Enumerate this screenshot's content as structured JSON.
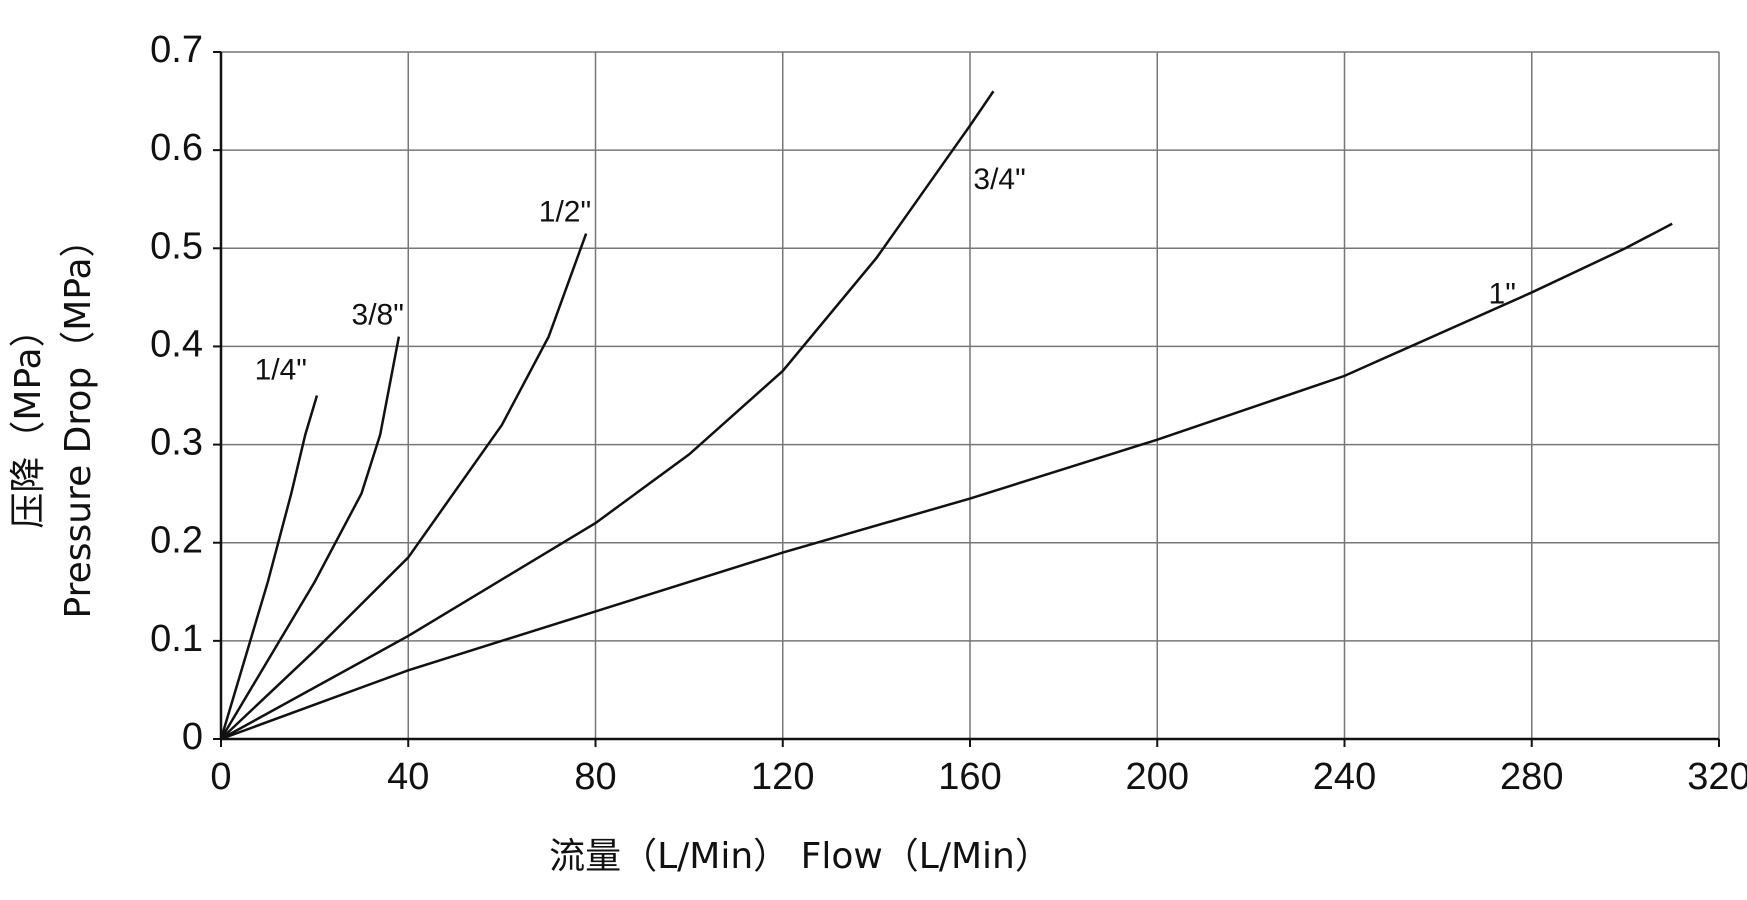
{
  "chart_data": {
    "type": "line",
    "y_label_lines": [
      "压降（MPa）",
      "Pressure Drop（MPa）"
    ],
    "x_label": "流量（L/Min）  Flow（L/Min）",
    "xlim": [
      0,
      320
    ],
    "xticks": [
      0,
      40,
      80,
      120,
      160,
      200,
      240,
      280,
      320
    ],
    "ylim": [
      0,
      0.7
    ],
    "yticks": [
      0,
      0.1,
      0.2,
      0.3,
      0.4,
      0.5,
      0.6,
      0.7
    ],
    "grid": true,
    "series": [
      {
        "name": "1/4\"",
        "color": "#111111",
        "x": [
          0,
          5,
          10,
          15,
          18,
          20.5
        ],
        "values": [
          0,
          0.08,
          0.16,
          0.25,
          0.31,
          0.35
        ]
      },
      {
        "name": "3/8\"",
        "color": "#111111",
        "x": [
          0,
          10,
          20,
          30,
          34,
          38
        ],
        "values": [
          0,
          0.08,
          0.16,
          0.25,
          0.31,
          0.41
        ]
      },
      {
        "name": "1/2\"",
        "color": "#111111",
        "x": [
          0,
          20,
          40,
          60,
          70,
          78
        ],
        "values": [
          0,
          0.09,
          0.185,
          0.32,
          0.41,
          0.515
        ]
      },
      {
        "name": "3/4\"",
        "color": "#111111",
        "x": [
          0,
          40,
          80,
          100,
          120,
          140,
          160,
          165
        ],
        "values": [
          0,
          0.105,
          0.22,
          0.29,
          0.375,
          0.49,
          0.625,
          0.66
        ]
      },
      {
        "name": "1\"",
        "color": "#111111",
        "x": [
          0,
          40,
          80,
          120,
          160,
          200,
          240,
          280,
          300,
          310
        ],
        "values": [
          0,
          0.07,
          0.13,
          0.19,
          0.245,
          0.305,
          0.37,
          0.455,
          0.5,
          0.525
        ]
      }
    ]
  }
}
